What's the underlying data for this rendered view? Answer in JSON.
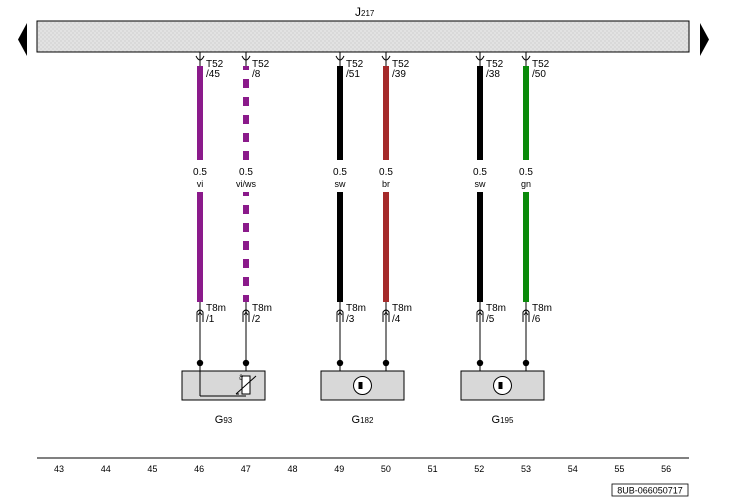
{
  "header": {
    "control_unit": "J",
    "control_unit_sub": "217"
  },
  "wires": [
    {
      "pin_top": "T52",
      "pin_top_num": "/45",
      "gauge": "0.5",
      "color_code": "vi",
      "color": "#8b1a8b",
      "stripe": "",
      "pin_bottom": "T8m",
      "pin_bottom_num": "/1"
    },
    {
      "pin_top": "T52",
      "pin_top_num": "/8",
      "gauge": "0.5",
      "color_code": "vi/ws",
      "color": "#8b1a8b",
      "stripe": "#ffffff",
      "pin_bottom": "T8m",
      "pin_bottom_num": "/2"
    },
    {
      "pin_top": "T52",
      "pin_top_num": "/51",
      "gauge": "0.5",
      "color_code": "sw",
      "color": "#000000",
      "stripe": "",
      "pin_bottom": "T8m",
      "pin_bottom_num": "/3"
    },
    {
      "pin_top": "T52",
      "pin_top_num": "/39",
      "gauge": "0.5",
      "color_code": "br",
      "color": "#a52a2a",
      "stripe": "",
      "pin_bottom": "T8m",
      "pin_bottom_num": "/4"
    },
    {
      "pin_top": "T52",
      "pin_top_num": "/38",
      "gauge": "0.5",
      "color_code": "sw",
      "color": "#000000",
      "stripe": "",
      "pin_bottom": "T8m",
      "pin_bottom_num": "/5"
    },
    {
      "pin_top": "T52",
      "pin_top_num": "/50",
      "gauge": "0.5",
      "color_code": "gn",
      "color": "#0a8a0a",
      "stripe": "",
      "pin_bottom": "T8m",
      "pin_bottom_num": "/6"
    }
  ],
  "components": [
    {
      "id": "G",
      "sub": "93",
      "symbol": "thermistor"
    },
    {
      "id": "G",
      "sub": "182",
      "symbol": "sensor"
    },
    {
      "id": "G",
      "sub": "195",
      "symbol": "sensor"
    }
  ],
  "grid_numbers": [
    "43",
    "44",
    "45",
    "46",
    "47",
    "48",
    "49",
    "50",
    "51",
    "52",
    "53",
    "54",
    "55",
    "56"
  ],
  "diagram_code": "8UB-066050717"
}
